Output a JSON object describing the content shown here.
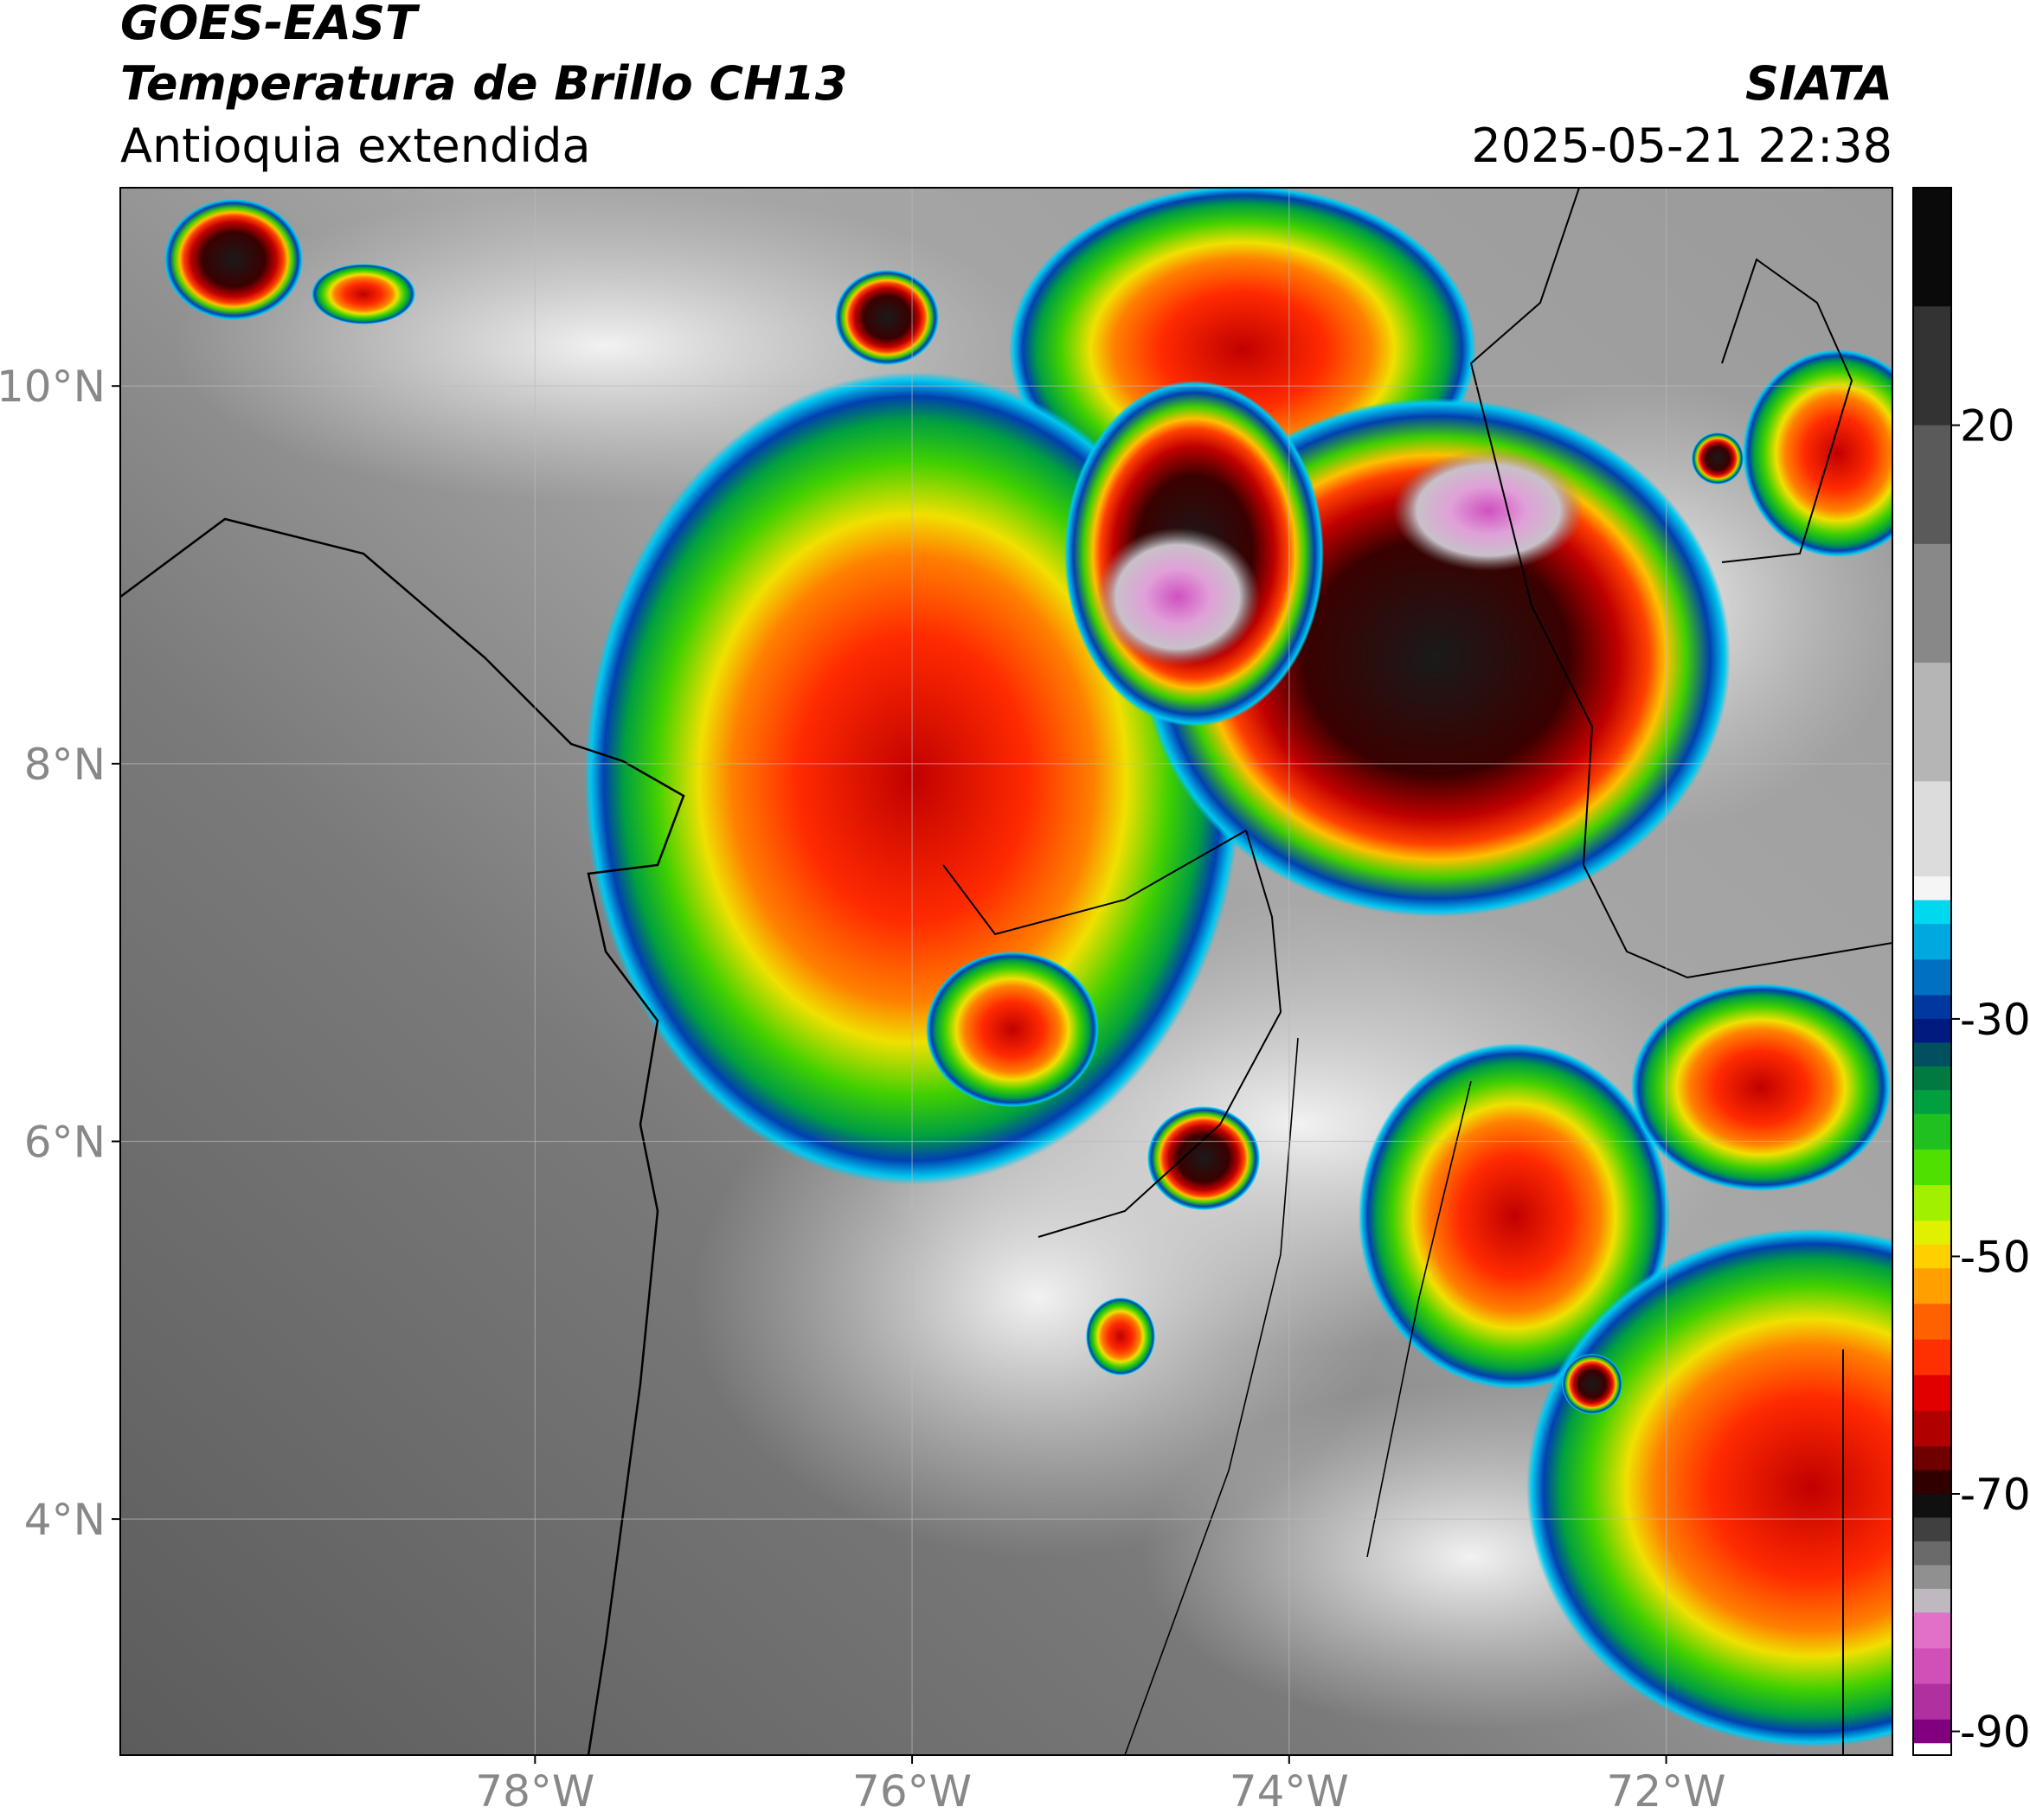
{
  "header": {
    "title": "GOES-EAST",
    "subtitle": "Temperatura de Brillo CH13",
    "region": "Antioquia extendida",
    "source": "SIATA",
    "datetime": "2025-05-21 22:38"
  },
  "map": {
    "xlim": [
      -80.2,
      -70.8
    ],
    "ylim": [
      2.75,
      11.05
    ],
    "xticks": [
      {
        "value": -78,
        "label": "78°W"
      },
      {
        "value": -76,
        "label": "76°W"
      },
      {
        "value": -74,
        "label": "74°W"
      },
      {
        "value": -72,
        "label": "72°W"
      }
    ],
    "yticks": [
      {
        "value": 4,
        "label": "4°N"
      },
      {
        "value": 6,
        "label": "6°N"
      },
      {
        "value": 8,
        "label": "8°N"
      },
      {
        "value": 10,
        "label": "10°N"
      }
    ],
    "grid": true,
    "colorbar": {
      "clim": [
        -92,
        40
      ],
      "ticks": [
        20,
        -30,
        -50,
        -70,
        -90
      ],
      "stops": [
        {
          "value": 40,
          "color": "#0a0a0a"
        },
        {
          "value": 30,
          "color": "#333333"
        },
        {
          "value": 20,
          "color": "#5a5a5a"
        },
        {
          "value": 10,
          "color": "#888888"
        },
        {
          "value": 0,
          "color": "#b5b5b5"
        },
        {
          "value": -10,
          "color": "#dcdcdc"
        },
        {
          "value": -18,
          "color": "#f5f5f5"
        },
        {
          "value": -20,
          "color": "#00d8f0"
        },
        {
          "value": -22,
          "color": "#00a8e0"
        },
        {
          "value": -25,
          "color": "#0070c0"
        },
        {
          "value": -28,
          "color": "#0038a0"
        },
        {
          "value": -30,
          "color": "#001a80"
        },
        {
          "value": -32,
          "color": "#005060"
        },
        {
          "value": -34,
          "color": "#007a40"
        },
        {
          "value": -36,
          "color": "#00a040"
        },
        {
          "value": -38,
          "color": "#20c020"
        },
        {
          "value": -41,
          "color": "#50e000"
        },
        {
          "value": -44,
          "color": "#a0f000"
        },
        {
          "value": -47,
          "color": "#e0f000"
        },
        {
          "value": -49,
          "color": "#ffd000"
        },
        {
          "value": -51,
          "color": "#ffa000"
        },
        {
          "value": -54,
          "color": "#ff6000"
        },
        {
          "value": -57,
          "color": "#ff3000"
        },
        {
          "value": -60,
          "color": "#e00000"
        },
        {
          "value": -63,
          "color": "#b00000"
        },
        {
          "value": -66,
          "color": "#700000"
        },
        {
          "value": -68,
          "color": "#300000"
        },
        {
          "value": -70,
          "color": "#101010"
        },
        {
          "value": -72,
          "color": "#404040"
        },
        {
          "value": -74,
          "color": "#6a6a6a"
        },
        {
          "value": -76,
          "color": "#909090"
        },
        {
          "value": -78,
          "color": "#c0b8c0"
        },
        {
          "value": -80,
          "color": "#e070c8"
        },
        {
          "value": -83,
          "color": "#d050b8"
        },
        {
          "value": -86,
          "color": "#b030a0"
        },
        {
          "value": -89,
          "color": "#800080"
        },
        {
          "value": -91,
          "color": "#ffffff"
        }
      ]
    }
  }
}
